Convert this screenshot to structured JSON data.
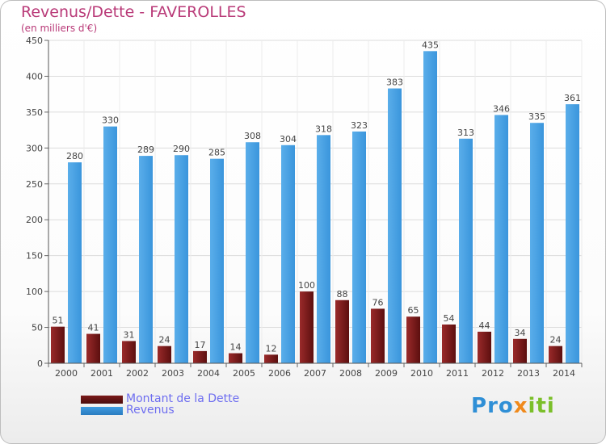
{
  "title": "Revenus/Dette - FAVEROLLES",
  "subtitle": "(en milliers d'€)",
  "legend": {
    "items": [
      {
        "label": "Montant de la Dette",
        "color": "#7a1a1a"
      },
      {
        "label": "Revenus",
        "color": "#3f9be0"
      }
    ]
  },
  "logo": {
    "text": "Proxiti"
  },
  "chart_data": {
    "type": "bar",
    "title": "Revenus/Dette - FAVEROLLES",
    "subtitle": "(en milliers d'€)",
    "categories": [
      "2000",
      "2001",
      "2002",
      "2003",
      "2004",
      "2005",
      "2006",
      "2007",
      "2008",
      "2009",
      "2010",
      "2011",
      "2012",
      "2013",
      "2014"
    ],
    "series": [
      {
        "name": "Montant de la Dette",
        "values": [
          51,
          41,
          31,
          24,
          17,
          14,
          12,
          100,
          88,
          76,
          65,
          54,
          44,
          34,
          24
        ],
        "color": "#7a1a1a"
      },
      {
        "name": "Revenus",
        "values": [
          280,
          330,
          289,
          290,
          285,
          308,
          304,
          318,
          323,
          383,
          435,
          313,
          346,
          335,
          361
        ],
        "color": "#3f9be0"
      }
    ],
    "ylim": [
      0,
      450
    ],
    "yticks": [
      0,
      50,
      100,
      150,
      200,
      250,
      300,
      350,
      400,
      450
    ],
    "grid": true,
    "legend": "bottom-left"
  }
}
